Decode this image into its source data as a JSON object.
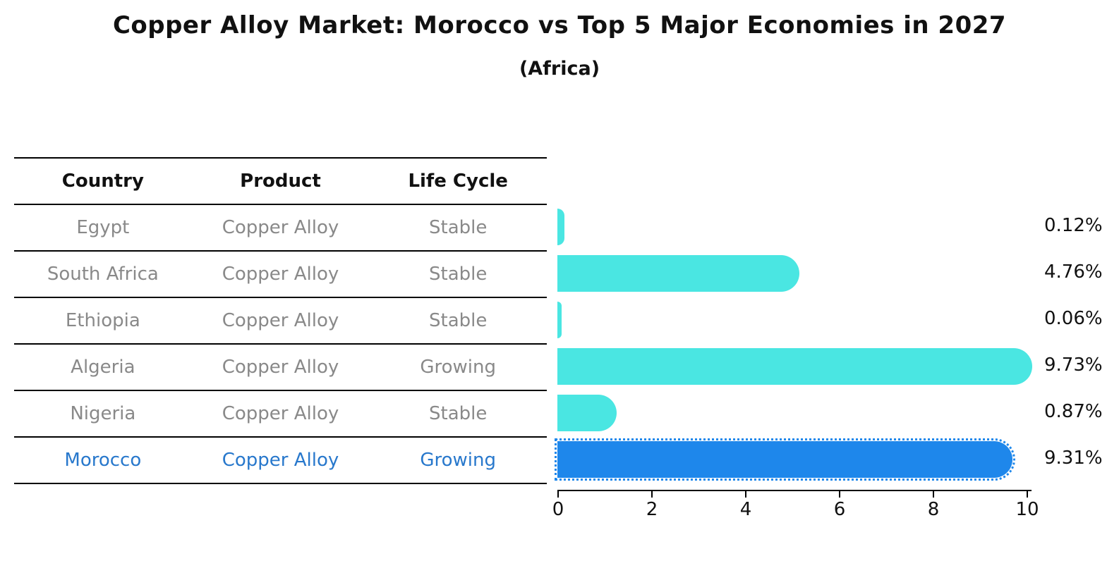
{
  "title": "Copper Alloy Market: Morocco vs Top 5 Major Economies in 2027",
  "subtitle": "(Africa)",
  "table": {
    "headers": [
      "Country",
      "Product",
      "Life Cycle"
    ],
    "rows": [
      {
        "country": "Egypt",
        "product": "Copper Alloy",
        "life_cycle": "Stable",
        "highlight": false
      },
      {
        "country": "South Africa",
        "product": "Copper Alloy",
        "life_cycle": "Stable",
        "highlight": false
      },
      {
        "country": "Ethiopia",
        "product": "Copper Alloy",
        "life_cycle": "Stable",
        "highlight": false
      },
      {
        "country": "Algeria",
        "product": "Copper Alloy",
        "life_cycle": "Growing",
        "highlight": false
      },
      {
        "country": "Nigeria",
        "product": "Copper Alloy",
        "life_cycle": "Stable",
        "highlight": false
      },
      {
        "country": "Morocco",
        "product": "Copper Alloy",
        "life_cycle": "Growing",
        "highlight": true
      }
    ]
  },
  "chart_data": {
    "type": "bar",
    "orientation": "horizontal",
    "title": "Copper Alloy Market: Morocco vs Top 5 Major Economies in 2027",
    "subtitle": "(Africa)",
    "categories": [
      "Egypt",
      "South Africa",
      "Ethiopia",
      "Algeria",
      "Nigeria",
      "Morocco"
    ],
    "values": [
      0.12,
      4.76,
      0.06,
      9.73,
      0.87,
      9.31
    ],
    "value_labels": [
      "0.12%",
      "4.76%",
      "0.06%",
      "9.73%",
      "0.87%",
      "9.31%"
    ],
    "x_ticks": [
      "0",
      "2",
      "4",
      "6",
      "8",
      "10"
    ],
    "xlim": [
      0,
      10
    ],
    "grid": false,
    "legend": false,
    "bar_color": "#4AE6E2",
    "highlight_color": "#1E87EB",
    "highlight_index": 5,
    "highlight_text_color": "#2878CC"
  }
}
